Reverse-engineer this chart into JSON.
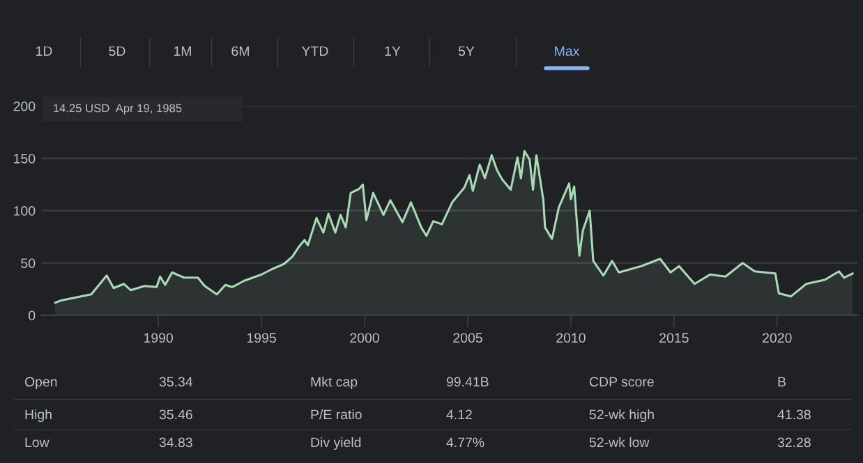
{
  "chart_data": {
    "type": "area",
    "x": [
      "1985-01",
      "1985-04",
      "1986-10",
      "1987-07",
      "1987-11",
      "1988-05",
      "1988-09",
      "1989-05",
      "1989-12",
      "1990-02",
      "1990-05",
      "1990-09",
      "1991-04",
      "1991-12",
      "1992-04",
      "1992-11",
      "1993-04",
      "1993-08",
      "1994-03",
      "1995-01",
      "1995-07",
      "1996-02",
      "1996-07",
      "1996-11",
      "1997-02",
      "1997-04",
      "1997-09",
      "1998-01",
      "1998-04",
      "1998-08",
      "1998-11",
      "1999-02",
      "1999-05",
      "1999-10",
      "1999-12",
      "2000-02",
      "2000-06",
      "2000-12",
      "2001-04",
      "2001-11",
      "2002-04",
      "2002-10",
      "2003-01",
      "2003-05",
      "2003-10",
      "2004-04",
      "2004-11",
      "2005-02",
      "2005-04",
      "2005-08",
      "2005-11",
      "2006-03",
      "2006-06",
      "2006-09",
      "2007-02",
      "2007-06",
      "2007-08",
      "2007-10",
      "2008-01",
      "2008-03",
      "2008-05",
      "2008-09",
      "2008-10",
      "2009-02",
      "2009-06",
      "2009-12",
      "2010-01",
      "2010-03",
      "2010-06",
      "2010-08",
      "2010-12",
      "2011-02",
      "2011-08",
      "2012-01",
      "2012-05",
      "2013-06",
      "2014-05",
      "2014-11",
      "2015-04",
      "2016-01",
      "2016-10",
      "2017-07",
      "2018-05",
      "2018-12",
      "2019-12",
      "2020-02",
      "2020-09",
      "2021-06",
      "2022-05",
      "2023-01",
      "2023-04",
      "2023-09"
    ],
    "series": [
      {
        "color": "#a8dab5",
        "values": [
          12,
          14,
          20,
          38,
          26,
          30,
          24,
          28,
          27,
          37,
          29,
          41,
          36,
          36,
          28,
          20,
          29,
          27,
          33,
          39,
          44,
          49,
          56,
          66,
          72,
          67,
          93,
          79,
          97,
          79,
          96,
          84,
          117,
          121,
          125,
          91,
          117,
          96,
          110,
          89,
          108,
          84,
          76,
          90,
          87,
          108,
          122,
          134,
          119,
          144,
          131,
          153,
          139,
          130,
          120,
          151,
          131,
          157,
          149,
          120,
          153,
          110,
          84,
          73,
          103,
          126,
          111,
          123,
          57,
          81,
          100,
          52,
          38,
          52,
          41,
          47,
          54,
          41,
          47,
          30,
          39,
          37,
          50,
          42,
          40,
          21,
          18,
          30,
          34,
          42,
          36,
          40
        ]
      }
    ],
    "xlim": [
      "1984-05",
      "2023-12"
    ],
    "xticks": [
      {
        "value": "1990",
        "label": "1990"
      },
      {
        "value": "1995",
        "label": "1995"
      },
      {
        "value": "2000",
        "label": "2000"
      },
      {
        "value": "2005",
        "label": "2005"
      },
      {
        "value": "2010",
        "label": "2010"
      },
      {
        "value": "2015",
        "label": "2015"
      },
      {
        "value": "2020",
        "label": "2020"
      }
    ],
    "ylim": [
      0,
      200
    ],
    "yticks": [
      0,
      50,
      100,
      150,
      200
    ],
    "grid": "y",
    "annotations": [
      "14.25 USD  Apr 19, 1985",
      "1D",
      "5D",
      "1M",
      "6M",
      "YTD",
      "1Y",
      "5Y",
      "Max",
      "Open",
      "35.34",
      "Mkt cap",
      "99.41B",
      "CDP score",
      "B",
      "High",
      "35.46",
      "P/E ratio",
      "4.12",
      "52-wk high",
      "41.38",
      "Low",
      "34.83",
      "Div yield",
      "4.77%",
      "52-wk low",
      "32.28"
    ]
  }
}
